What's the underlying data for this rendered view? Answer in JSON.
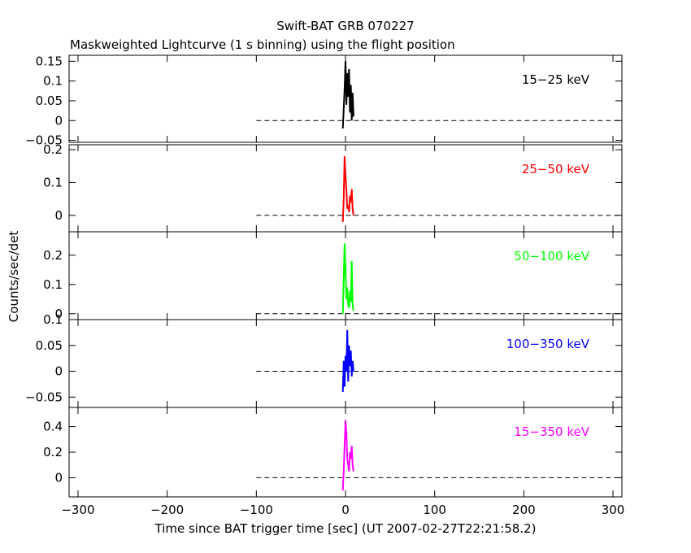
{
  "title": "Swift-BAT GRB 070227",
  "subtitle": "Maskweighted Lightcurve (1 s binning) using the flight position",
  "xlabel": "Time since BAT trigger time [sec] (UT 2007-02-27T22:21:58.2)",
  "ylabel": "Counts/sec/det",
  "chart_data": {
    "type": "line",
    "title": "Swift-BAT GRB 070227",
    "subtitle": "Maskweighted Lightcurve (1 s binning) using the flight position",
    "xlabel": "Time since BAT trigger time [sec] (UT 2007-02-27T22:21:58.2)",
    "ylabel": "Counts/sec/det",
    "xlim": [
      -310,
      310
    ],
    "x_ticks": [
      -300,
      -200,
      -100,
      0,
      100,
      200,
      300
    ],
    "x_tick_labels": [
      "−300",
      "−200",
      "−100",
      "0",
      "100",
      "200",
      "300"
    ],
    "baseline": {
      "x_start": -100,
      "x_end": 310,
      "y": 0,
      "style": "dashed"
    },
    "panels": [
      {
        "name": "15−25 keV",
        "color": "#000000",
        "ylim": [
          -0.055,
          0.165
        ],
        "y_ticks": [
          -0.05,
          0,
          0.05,
          0.1,
          0.15
        ],
        "y_tick_labels": [
          "−0.05",
          "0",
          "0.05",
          "0.1",
          "0.15"
        ],
        "x": [
          -3,
          -2,
          -1,
          0,
          1,
          2,
          3,
          4,
          5,
          6,
          7,
          8,
          9
        ],
        "y": [
          -0.02,
          0.03,
          0.08,
          0.15,
          0.04,
          0.12,
          0.06,
          0.13,
          0.02,
          0.09,
          0.0,
          0.07,
          0.01
        ]
      },
      {
        "name": "25−50 keV",
        "color": "#ff0000",
        "ylim": [
          -0.05,
          0.215
        ],
        "y_ticks": [
          0,
          0.1,
          0.2
        ],
        "y_tick_labels": [
          "0",
          "0.1",
          "0.2"
        ],
        "x": [
          -3,
          -2,
          -1,
          0,
          1,
          2,
          3,
          4,
          5,
          6,
          7,
          8,
          9
        ],
        "y": [
          -0.02,
          0.05,
          0.18,
          0.12,
          0.08,
          0.02,
          0.03,
          0.01,
          0.06,
          0.04,
          0.08,
          0.02,
          0.0
        ]
      },
      {
        "name": "50−100 keV",
        "color": "#00ff00",
        "ylim": [
          -0.02,
          0.28
        ],
        "y_ticks": [
          0,
          0.1,
          0.2
        ],
        "y_tick_labels": [
          "0",
          "0.1",
          "0.2"
        ],
        "x": [
          -3,
          -2,
          -1,
          0,
          1,
          2,
          3,
          4,
          5,
          6,
          7,
          8,
          9
        ],
        "y": [
          0.0,
          0.12,
          0.24,
          0.15,
          0.05,
          0.09,
          0.03,
          0.02,
          0.08,
          0.04,
          0.18,
          0.03,
          0.01
        ]
      },
      {
        "name": "100−350 keV",
        "color": "#0000ff",
        "ylim": [
          -0.07,
          0.1
        ],
        "y_ticks": [
          -0.05,
          0,
          0.05,
          0.1
        ],
        "y_tick_labels": [
          "−0.05",
          "0",
          "0.05",
          "0.1"
        ],
        "x": [
          -3,
          -2,
          -1,
          0,
          1,
          2,
          3,
          4,
          5,
          6,
          7,
          8,
          9
        ],
        "y": [
          -0.04,
          0.02,
          -0.03,
          0.03,
          0.0,
          0.08,
          -0.02,
          0.05,
          0.01,
          0.04,
          -0.01,
          0.02,
          0.0
        ]
      },
      {
        "name": "15−350 keV",
        "color": "#ff00ff",
        "ylim": [
          -0.15,
          0.55
        ],
        "y_ticks": [
          0,
          0.2,
          0.4
        ],
        "y_tick_labels": [
          "0",
          "0.2",
          "0.4"
        ],
        "x": [
          -3,
          -2,
          -1,
          0,
          1,
          2,
          3,
          4,
          5,
          6,
          7,
          8,
          9
        ],
        "y": [
          -0.1,
          0.05,
          0.25,
          0.45,
          0.35,
          0.15,
          0.1,
          0.05,
          0.2,
          0.15,
          0.25,
          0.1,
          0.05
        ]
      }
    ]
  }
}
